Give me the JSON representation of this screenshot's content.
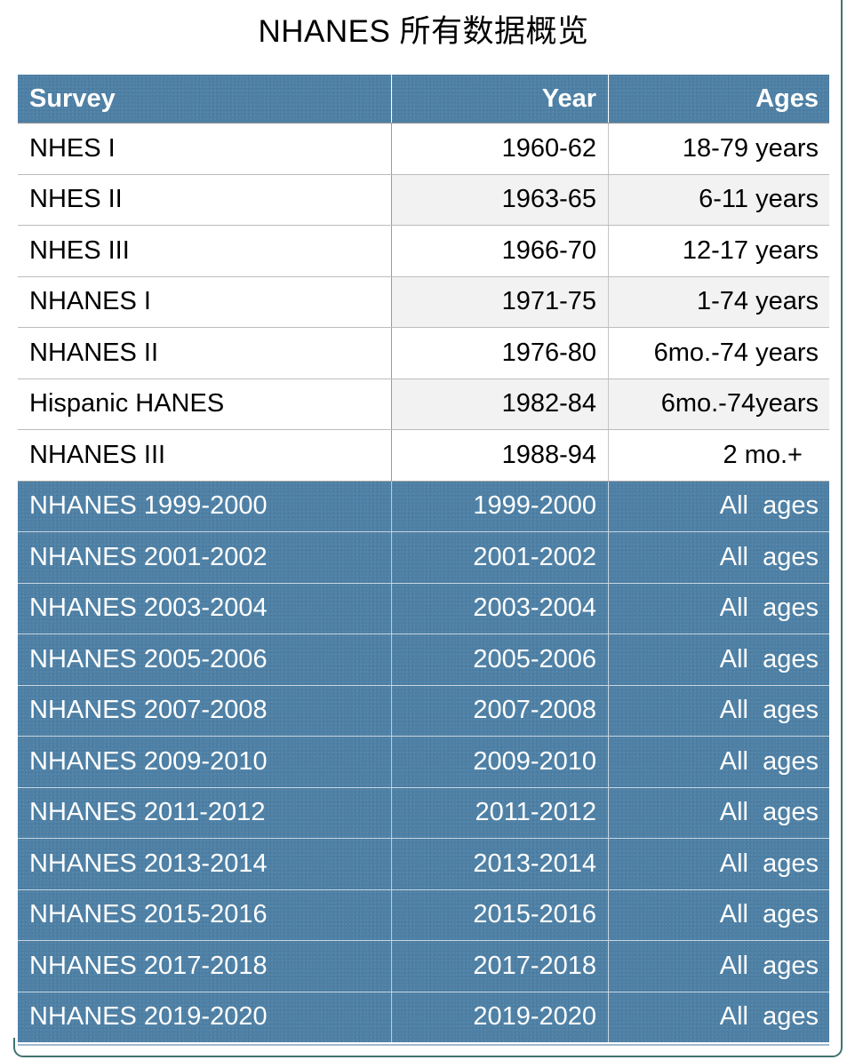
{
  "title": "NHANES 所有数据概览",
  "colors": {
    "header_blue": "#4e80a5",
    "row_alt_gray": "#f2f2f2",
    "frame_teal": "#3f7370",
    "table_bottom_rule": "#a3bace",
    "header_text": "#ffffff",
    "body_text": "#000000"
  },
  "table": {
    "columns": [
      {
        "label": "Survey",
        "align": "left"
      },
      {
        "label": "Year",
        "align": "right"
      },
      {
        "label": "Ages",
        "align": "right"
      }
    ],
    "rows": [
      {
        "survey": "NHES I",
        "year": "1960-62",
        "ages": "18-79 years",
        "section": "historic"
      },
      {
        "survey": "NHES II",
        "year": "1963-65",
        "ages": "6-11 years",
        "section": "historic"
      },
      {
        "survey": "NHES III",
        "year": "1966-70",
        "ages": "12-17 years",
        "section": "historic"
      },
      {
        "survey": "NHANES I",
        "year": "1971-75",
        "ages": "1-74 years",
        "section": "historic"
      },
      {
        "survey": "NHANES II",
        "year": "1976-80",
        "ages": "6mo.-74 years",
        "section": "historic"
      },
      {
        "survey": "Hispanic HANES",
        "year": "1982-84",
        "ages": "6mo.-74years",
        "section": "historic"
      },
      {
        "survey": "NHANES III",
        "year": "1988-94",
        "ages": "2 mo.+",
        "section": "historic"
      },
      {
        "survey": "NHANES 1999-2000",
        "year": "1999-2000",
        "ages": "All  ages",
        "section": "continuous"
      },
      {
        "survey": "NHANES 2001-2002",
        "year": "2001-2002",
        "ages": "All  ages",
        "section": "continuous"
      },
      {
        "survey": "NHANES 2003-2004",
        "year": "2003-2004",
        "ages": "All  ages",
        "section": "continuous"
      },
      {
        "survey": "NHANES 2005-2006",
        "year": "2005-2006",
        "ages": "All  ages",
        "section": "continuous"
      },
      {
        "survey": "NHANES 2007-2008",
        "year": "2007-2008",
        "ages": "All  ages",
        "section": "continuous"
      },
      {
        "survey": "NHANES 2009-2010",
        "year": "2009-2010",
        "ages": "All  ages",
        "section": "continuous"
      },
      {
        "survey": "NHANES 2011-2012",
        "year": "2011-2012",
        "ages": "All  ages",
        "section": "continuous"
      },
      {
        "survey": "NHANES 2013-2014",
        "year": "2013-2014",
        "ages": "All  ages",
        "section": "continuous"
      },
      {
        "survey": "NHANES 2015-2016",
        "year": "2015-2016",
        "ages": "All  ages",
        "section": "continuous"
      },
      {
        "survey": "NHANES 2017-2018",
        "year": "2017-2018",
        "ages": "All  ages",
        "section": "continuous"
      },
      {
        "survey": "NHANES 2019-2020",
        "year": "2019-2020",
        "ages": "All  ages",
        "section": "continuous"
      }
    ]
  },
  "chart_data": {
    "type": "table",
    "title": "NHANES 所有数据概览",
    "columns": [
      "Survey",
      "Year",
      "Ages"
    ],
    "rows": [
      [
        "NHES I",
        "1960-62",
        "18-79 years"
      ],
      [
        "NHES II",
        "1963-65",
        "6-11 years"
      ],
      [
        "NHES III",
        "1966-70",
        "12-17 years"
      ],
      [
        "NHANES I",
        "1971-75",
        "1-74 years"
      ],
      [
        "NHANES II",
        "1976-80",
        "6mo.-74 years"
      ],
      [
        "Hispanic HANES",
        "1982-84",
        "6mo.-74years"
      ],
      [
        "NHANES III",
        "1988-94",
        "2 mo.+"
      ],
      [
        "NHANES 1999-2000",
        "1999-2000",
        "All  ages"
      ],
      [
        "NHANES 2001-2002",
        "2001-2002",
        "All  ages"
      ],
      [
        "NHANES 2003-2004",
        "2003-2004",
        "All  ages"
      ],
      [
        "NHANES 2005-2006",
        "2005-2006",
        "All  ages"
      ],
      [
        "NHANES 2007-2008",
        "2007-2008",
        "All  ages"
      ],
      [
        "NHANES 2009-2010",
        "2009-2010",
        "All  ages"
      ],
      [
        "NHANES 2011-2012",
        "2011-2012",
        "All  ages"
      ],
      [
        "NHANES 2013-2014",
        "2013-2014",
        "All  ages"
      ],
      [
        "NHANES 2015-2016",
        "2015-2016",
        "All  ages"
      ],
      [
        "NHANES 2017-2018",
        "2017-2018",
        "All  ages"
      ],
      [
        "NHANES 2019-2020",
        "2019-2020",
        "All  ages"
      ]
    ]
  }
}
